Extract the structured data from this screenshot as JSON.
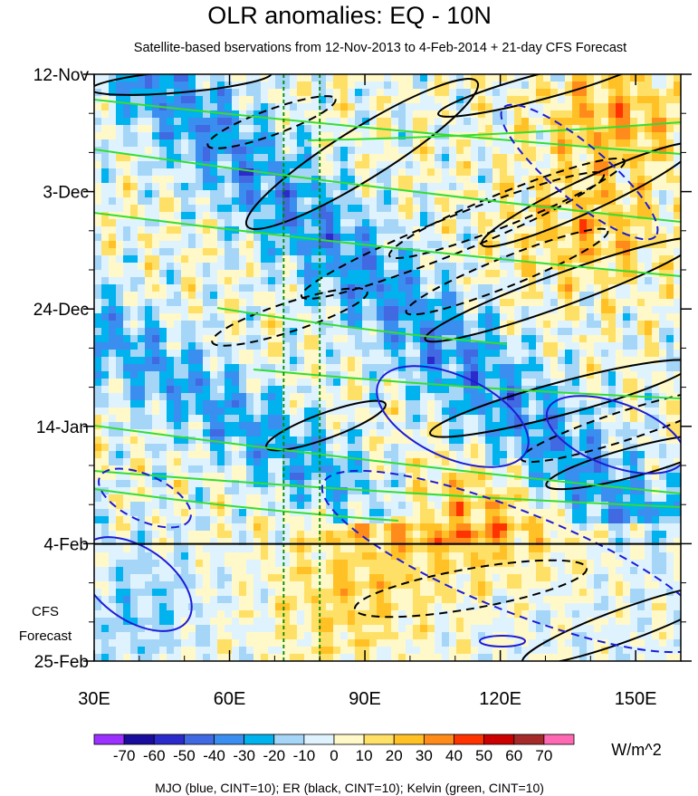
{
  "title": "OLR anomalies: EQ - 10N",
  "subtitle": "Satellite-based bservations from 12-Nov-2013 to 4-Feb-2014 + 21-day CFS Forecast",
  "forecast_label_line1": "CFS",
  "forecast_label_line2": "Forecast",
  "units": "W/m^2",
  "footer": "MJO (blue, CINT=10); ER (black, CINT=10); Kelvin (green, CINT=10)",
  "chart_data": {
    "type": "heatmap",
    "x_ticks": [
      {
        "label": "30E",
        "lon": 30
      },
      {
        "label": "60E",
        "lon": 60
      },
      {
        "label": "90E",
        "lon": 90
      },
      {
        "label": "120E",
        "lon": 120
      },
      {
        "label": "150E",
        "lon": 150
      }
    ],
    "x_range": [
      30,
      160
    ],
    "y_ticks": [
      {
        "label": "12-Nov",
        "day": 0
      },
      {
        "label": "3-Dec",
        "day": 21
      },
      {
        "label": "24-Dec",
        "day": 42
      },
      {
        "label": "14-Jan",
        "day": 63
      },
      {
        "label": "4-Feb",
        "day": 84
      },
      {
        "label": "25-Feb",
        "day": 105
      }
    ],
    "y_range": [
      0,
      105
    ],
    "observation_end_line": "4-Feb",
    "reference_longitudes": [
      72,
      80
    ],
    "colorbar": {
      "labels": [
        "-70",
        "-60",
        "-50",
        "-40",
        "-30",
        "-20",
        "-10",
        "0",
        "10",
        "20",
        "30",
        "40",
        "50",
        "60",
        "70"
      ],
      "colors": [
        "#9b30ff",
        "#1a0d9e",
        "#2b2bcc",
        "#4169e1",
        "#3a8ef0",
        "#00b2ee",
        "#a6d6f7",
        "#dff3ff",
        "#fff8c8",
        "#ffe066",
        "#ffc125",
        "#ff8c1a",
        "#ff3300",
        "#cc0000",
        "#a52a2a",
        "#ff69b4"
      ]
    },
    "overlays": [
      {
        "name": "MJO",
        "color": "#1c1cd6",
        "cint": 10
      },
      {
        "name": "ER",
        "color": "#000000",
        "cint": 10
      },
      {
        "name": "Kelvin",
        "color": "#33dd33",
        "cint": 10
      }
    ]
  }
}
